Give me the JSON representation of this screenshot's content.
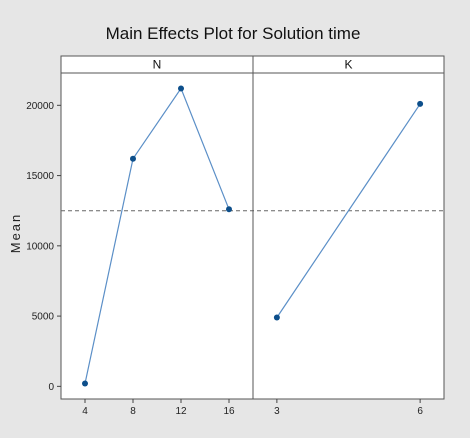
{
  "chart_data": {
    "type": "line",
    "title": "Main Effects Plot for Solution time",
    "ylabel": "Mean",
    "ylim": [
      -900,
      22300
    ],
    "yticks": [
      0,
      5000,
      10000,
      15000,
      20000
    ],
    "reference_mean": 12500,
    "panels": [
      {
        "name": "N",
        "x": [
          4,
          8,
          12,
          16
        ],
        "y": [
          200,
          16200,
          21200,
          12600
        ]
      },
      {
        "name": "K",
        "x": [
          3,
          6
        ],
        "y": [
          4900,
          20100
        ]
      }
    ],
    "colors": {
      "line": "#5b8fc7",
      "marker": "#0d4f8b",
      "ref": "#666666",
      "background": "#e6e6e6",
      "plot": "#ffffff"
    }
  }
}
